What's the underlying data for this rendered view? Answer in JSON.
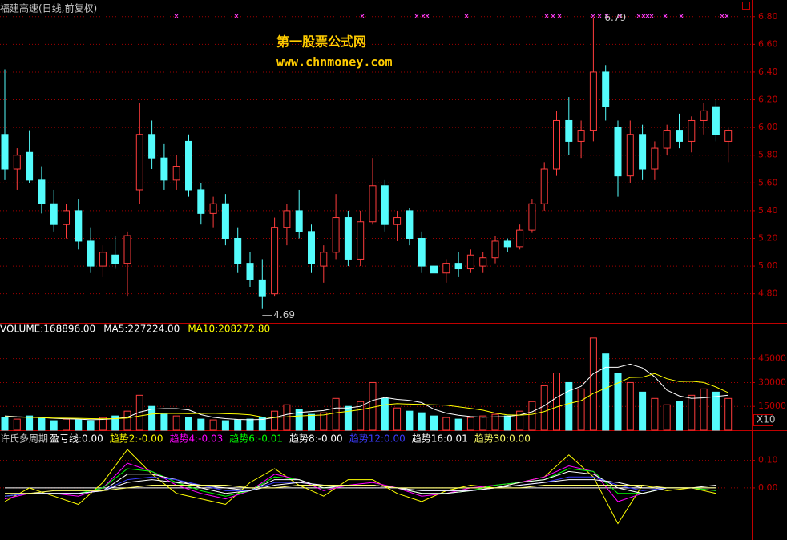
{
  "chart_data": [
    {
      "type": "candlestick",
      "title": "福建高速(日线,前复权)",
      "watermark": [
        "第一股票公式网",
        "www.chnmoney.com"
      ],
      "open": [
        5.95,
        5.7,
        5.82,
        5.62,
        5.45,
        5.3,
        5.4,
        5.18,
        5.0,
        5.08,
        5.02,
        5.55,
        5.95,
        5.78,
        5.62,
        5.9,
        5.55,
        5.38,
        5.45,
        5.2,
        5.02,
        4.9,
        4.8,
        5.28,
        5.4,
        5.25,
        5.0,
        5.1,
        5.35,
        5.05,
        5.32,
        5.58,
        5.3,
        5.4,
        5.2,
        5.0,
        4.95,
        5.02,
        4.98,
        5.0,
        5.06,
        5.18,
        5.14,
        5.26,
        5.45,
        5.7,
        6.05,
        5.9,
        5.98,
        6.4,
        6.0,
        5.65,
        5.95,
        5.7,
        5.85,
        5.98,
        5.9,
        6.05,
        6.15,
        5.9
      ],
      "high": [
        6.42,
        5.85,
        5.98,
        5.72,
        5.55,
        5.45,
        5.48,
        5.28,
        5.15,
        5.22,
        5.25,
        6.18,
        6.05,
        5.88,
        5.8,
        5.95,
        5.6,
        5.5,
        5.52,
        5.28,
        5.1,
        5.05,
        5.35,
        5.45,
        5.55,
        5.3,
        5.15,
        5.52,
        5.4,
        5.4,
        5.78,
        5.62,
        5.4,
        5.42,
        5.25,
        5.08,
        5.05,
        5.1,
        5.12,
        5.1,
        5.22,
        5.2,
        5.3,
        5.48,
        5.75,
        6.12,
        6.22,
        6.05,
        6.79,
        6.45,
        6.05,
        6.05,
        6.02,
        5.9,
        6.02,
        6.1,
        6.08,
        6.18,
        6.2,
        6.0
      ],
      "low": [
        5.62,
        5.55,
        5.6,
        5.38,
        5.25,
        5.2,
        5.12,
        4.95,
        4.92,
        4.98,
        4.78,
        5.45,
        5.7,
        5.55,
        5.55,
        5.5,
        5.3,
        5.28,
        5.15,
        4.95,
        4.85,
        4.69,
        4.78,
        5.15,
        5.2,
        4.95,
        4.88,
        5.05,
        5.0,
        5.0,
        5.3,
        5.25,
        5.18,
        5.15,
        4.95,
        4.9,
        4.88,
        4.92,
        4.95,
        4.95,
        5.02,
        5.1,
        5.12,
        5.24,
        5.4,
        5.65,
        5.8,
        5.78,
        5.9,
        6.05,
        5.5,
        5.6,
        5.62,
        5.62,
        5.8,
        5.85,
        5.82,
        5.95,
        5.9,
        5.75
      ],
      "close": [
        5.7,
        5.8,
        5.62,
        5.45,
        5.3,
        5.4,
        5.18,
        5.0,
        5.1,
        5.02,
        5.22,
        5.95,
        5.78,
        5.62,
        5.72,
        5.55,
        5.38,
        5.45,
        5.2,
        5.02,
        4.9,
        4.78,
        5.28,
        5.4,
        5.25,
        5.02,
        5.1,
        5.35,
        5.05,
        5.32,
        5.58,
        5.3,
        5.35,
        5.2,
        5.0,
        4.95,
        5.02,
        4.98,
        5.08,
        5.06,
        5.18,
        5.14,
        5.26,
        5.45,
        5.7,
        6.05,
        5.9,
        5.98,
        6.4,
        6.15,
        5.65,
        5.95,
        5.7,
        5.85,
        5.98,
        5.9,
        6.05,
        6.12,
        5.95,
        5.98
      ],
      "up_color": "#ff3c3c",
      "down_color": "#54fcfc",
      "ylim": [
        4.59,
        6.92
      ],
      "yticks": [
        {
          "value": 4.8,
          "label": "4.80"
        },
        {
          "value": 5.0,
          "label": "5.00"
        },
        {
          "value": 5.2,
          "label": "5.20"
        },
        {
          "value": 5.4,
          "label": "5.40"
        },
        {
          "value": 5.6,
          "label": "5.60"
        },
        {
          "value": 5.8,
          "label": "5.80"
        },
        {
          "value": 6.0,
          "label": "6.00"
        },
        {
          "value": 6.2,
          "label": "6.20"
        },
        {
          "value": 6.4,
          "label": "6.40"
        },
        {
          "value": 6.6,
          "label": "6.60"
        },
        {
          "value": 6.8,
          "label": "6.80"
        }
      ],
      "grid": true,
      "annotations": [
        {
          "text": "6.79"
        },
        {
          "text": "4.69"
        }
      ]
    },
    {
      "type": "bar",
      "unit_label": "X10",
      "series": [
        {
          "name": "VOLUME:168896.00",
          "color": "#ffffff",
          "values": [
            8000,
            7000,
            9000,
            7500,
            6000,
            7000,
            6500,
            6000,
            8000,
            9000,
            12000,
            22000,
            15000,
            10000,
            9000,
            8000,
            7000,
            6500,
            6000,
            6500,
            7000,
            8000,
            12000,
            16000,
            13000,
            10000,
            11000,
            20000,
            15000,
            18000,
            30000,
            20000,
            14000,
            12000,
            11000,
            9000,
            8000,
            7000,
            8000,
            9000,
            10000,
            9000,
            12000,
            18000,
            28000,
            36000,
            30000,
            26000,
            58000,
            48000,
            36000,
            30000,
            24000,
            20000,
            16000,
            18000,
            22000,
            26000,
            24000,
            20000
          ]
        },
        {
          "name": "MA5:227224.00",
          "type": "line",
          "color": "#ffffff",
          "values": [
            9000,
            8500,
            8200,
            8000,
            7500,
            7200,
            7000,
            6600,
            6800,
            7300,
            8200,
            11400,
            13200,
            13600,
            13600,
            12800,
            9800,
            8100,
            7300,
            6800,
            6600,
            6800,
            8000,
            9900,
            11200,
            11800,
            12400,
            14000,
            14000,
            15000,
            18800,
            20600,
            19400,
            18800,
            17400,
            13200,
            10800,
            9400,
            8600,
            8200,
            8400,
            8600,
            9600,
            11600,
            15400,
            20600,
            24800,
            27600,
            35600,
            39600,
            39600,
            41600,
            39200,
            33600,
            25200,
            21600,
            20000,
            20400,
            21200,
            22000
          ]
        },
        {
          "name": "MA10:208272.80",
          "type": "line",
          "color": "#ffff00",
          "values": [
            8500,
            8300,
            8100,
            7900,
            7700,
            7600,
            7500,
            7300,
            7200,
            7300,
            7700,
            9000,
            10200,
            10600,
            10600,
            10500,
            10600,
            10700,
            10400,
            10200,
            9700,
            8300,
            8000,
            8400,
            9000,
            9300,
            9600,
            11000,
            11900,
            12900,
            14400,
            16000,
            16700,
            16400,
            16200,
            16000,
            15700,
            14700,
            13700,
            12600,
            10800,
            9600,
            9500,
            10000,
            11800,
            14600,
            16800,
            18600,
            23200,
            26400,
            29700,
            33200,
            33400,
            35600,
            32400,
            30600,
            30800,
            30000,
            27200,
            23600
          ]
        }
      ],
      "ylim": [
        0,
        67500
      ],
      "yticks": [
        15000,
        30000,
        45000
      ],
      "grid": true
    },
    {
      "type": "line",
      "title": "许氏多周期",
      "x": [
        0,
        2,
        4,
        6,
        8,
        10,
        12,
        14,
        16,
        18,
        20,
        22,
        24,
        26,
        28,
        30,
        32,
        34,
        36,
        38,
        40,
        42,
        44,
        46,
        48,
        50,
        52,
        54,
        56,
        58
      ],
      "series": [
        {
          "name": "盈亏线:0.00",
          "color": "#ffffff",
          "values": [
            0,
            0,
            0,
            0,
            0,
            0,
            0,
            0,
            0,
            0,
            0,
            0,
            0,
            0,
            0,
            0,
            0,
            0,
            0,
            0,
            0,
            0,
            0,
            0,
            0,
            0,
            0,
            0,
            0,
            0
          ]
        },
        {
          "name": "趋势2:-0.00",
          "color": "#ffff00",
          "values": [
            -0.05,
            0.0,
            -0.03,
            -0.06,
            0.02,
            0.14,
            0.05,
            -0.02,
            -0.04,
            -0.06,
            0.02,
            0.07,
            0.01,
            -0.03,
            0.03,
            0.03,
            -0.02,
            -0.05,
            -0.01,
            0.01,
            0.0,
            0.02,
            0.04,
            0.12,
            0.04,
            -0.13,
            0.01,
            -0.01,
            0.0,
            -0.02
          ]
        },
        {
          "name": "趋势4:-0.03",
          "color": "#ff00ff",
          "values": [
            -0.04,
            -0.02,
            -0.02,
            -0.03,
            0.0,
            0.09,
            0.06,
            0.01,
            -0.02,
            -0.04,
            -0.01,
            0.05,
            0.03,
            -0.01,
            0.01,
            0.02,
            0.0,
            -0.03,
            -0.02,
            0.0,
            0.01,
            0.02,
            0.04,
            0.08,
            0.06,
            -0.05,
            -0.02,
            0.0,
            0.0,
            -0.01
          ]
        },
        {
          "name": "趋势6:-0.01",
          "color": "#00ff00",
          "values": [
            -0.03,
            -0.02,
            -0.02,
            -0.02,
            0.0,
            0.07,
            0.06,
            0.02,
            -0.01,
            -0.03,
            -0.01,
            0.04,
            0.03,
            0.0,
            0.01,
            0.01,
            0.0,
            -0.02,
            -0.02,
            -0.01,
            0.01,
            0.02,
            0.03,
            0.07,
            0.06,
            -0.02,
            -0.02,
            0.0,
            0.0,
            -0.01
          ]
        },
        {
          "name": "趋势8:-0.00",
          "color": "#ffffff",
          "values": [
            -0.03,
            -0.02,
            -0.02,
            -0.02,
            -0.01,
            0.05,
            0.05,
            0.03,
            0.0,
            -0.02,
            -0.01,
            0.03,
            0.03,
            0.0,
            0.01,
            0.01,
            0.0,
            -0.02,
            -0.02,
            -0.01,
            0.0,
            0.02,
            0.03,
            0.06,
            0.05,
            0.0,
            -0.02,
            0.0,
            0.0,
            0.0
          ]
        },
        {
          "name": "趋势12:0.00",
          "color": "#3c3cff",
          "values": [
            -0.03,
            -0.02,
            -0.02,
            -0.02,
            -0.01,
            0.03,
            0.04,
            0.03,
            0.01,
            -0.01,
            -0.01,
            0.02,
            0.02,
            0.01,
            0.01,
            0.01,
            0.0,
            -0.01,
            -0.01,
            -0.01,
            0.0,
            0.01,
            0.02,
            0.04,
            0.04,
            0.01,
            -0.01,
            0.0,
            0.0,
            0.0
          ]
        },
        {
          "name": "趋势16:0.01",
          "color": "#ffffff",
          "values": [
            -0.02,
            -0.02,
            -0.02,
            -0.02,
            -0.01,
            0.02,
            0.03,
            0.02,
            0.01,
            0.0,
            -0.01,
            0.01,
            0.02,
            0.01,
            0.01,
            0.01,
            0.0,
            -0.01,
            -0.01,
            -0.01,
            0.0,
            0.01,
            0.02,
            0.03,
            0.03,
            0.02,
            0.0,
            0.0,
            0.0,
            0.01
          ]
        },
        {
          "name": "趋势30:0.00",
          "color": "#ffff66",
          "values": [
            -0.02,
            -0.02,
            -0.01,
            -0.01,
            -0.01,
            0.0,
            0.01,
            0.01,
            0.01,
            0.01,
            0.0,
            0.0,
            0.01,
            0.01,
            0.01,
            0.01,
            0.0,
            0.0,
            0.0,
            0.0,
            0.0,
            0.0,
            0.01,
            0.01,
            0.01,
            0.01,
            0.01,
            0.0,
            0.0,
            0.0
          ]
        }
      ],
      "ylim": [
        -0.19,
        0.21
      ],
      "yticks": [
        {
          "value": 0.1,
          "label": "0.10"
        },
        {
          "value": 0,
          "label": "0.00"
        }
      ],
      "grid": true
    }
  ]
}
